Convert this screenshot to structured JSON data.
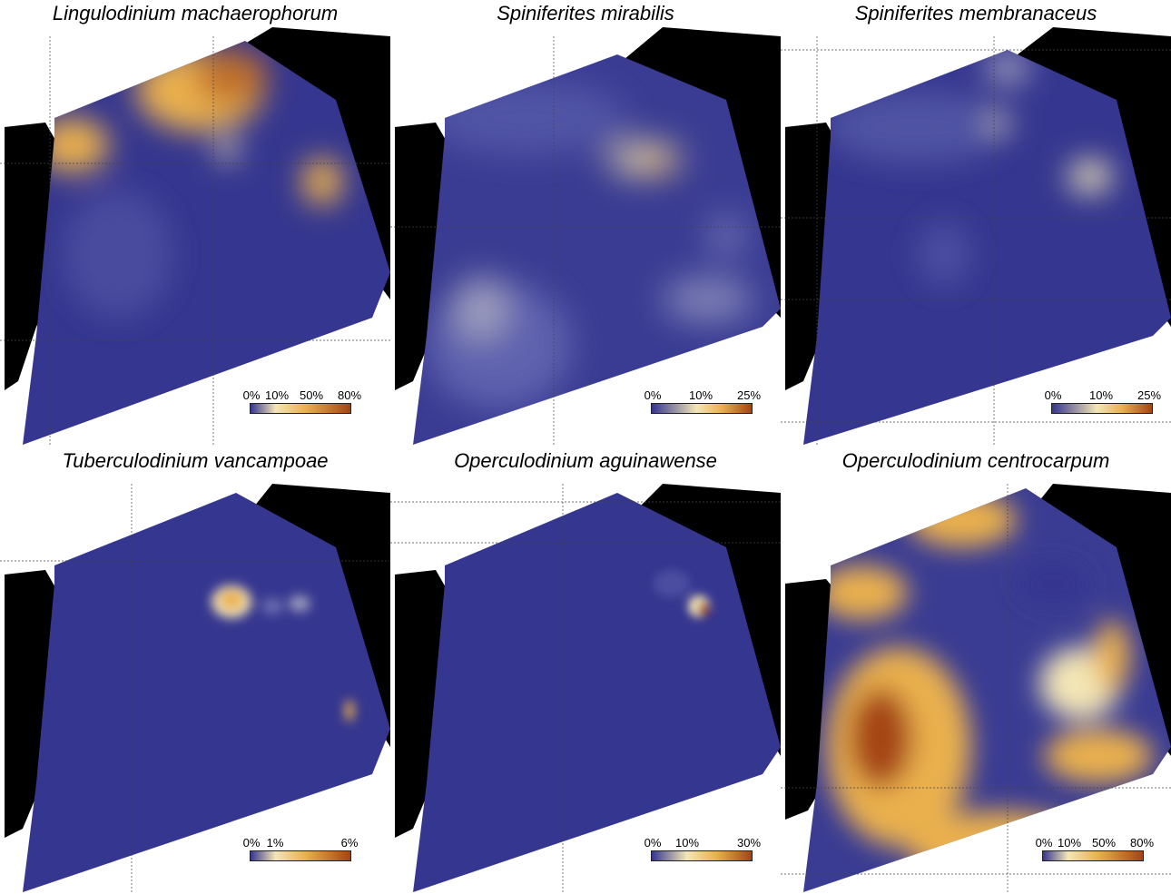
{
  "colors": {
    "land": "#000000",
    "low": "#35368f",
    "mid_blue": "#5457a7",
    "light": "#f3e6b6",
    "mid": "#eab04e",
    "high": "#a54412"
  },
  "panels": [
    {
      "title": "Lingulodinium machaerophorum",
      "legend": [
        "0%",
        "10%",
        "50%",
        "80%"
      ]
    },
    {
      "title": "Spiniferites mirabilis",
      "legend": [
        "0%",
        "10%",
        "25%"
      ]
    },
    {
      "title": "Spiniferites membranaceus",
      "legend": [
        "0%",
        "10%",
        "25%"
      ]
    },
    {
      "title": "Tuberculodinium vancampoae",
      "legend": [
        "0%",
        "1%",
        "6%"
      ]
    },
    {
      "title": "Operculodinium aguinawense",
      "legend": [
        "0%",
        "10%",
        "30%"
      ]
    },
    {
      "title": "Operculodinium centrocarpum",
      "legend": [
        "0%",
        "10%",
        "50%",
        "80%"
      ]
    }
  ]
}
